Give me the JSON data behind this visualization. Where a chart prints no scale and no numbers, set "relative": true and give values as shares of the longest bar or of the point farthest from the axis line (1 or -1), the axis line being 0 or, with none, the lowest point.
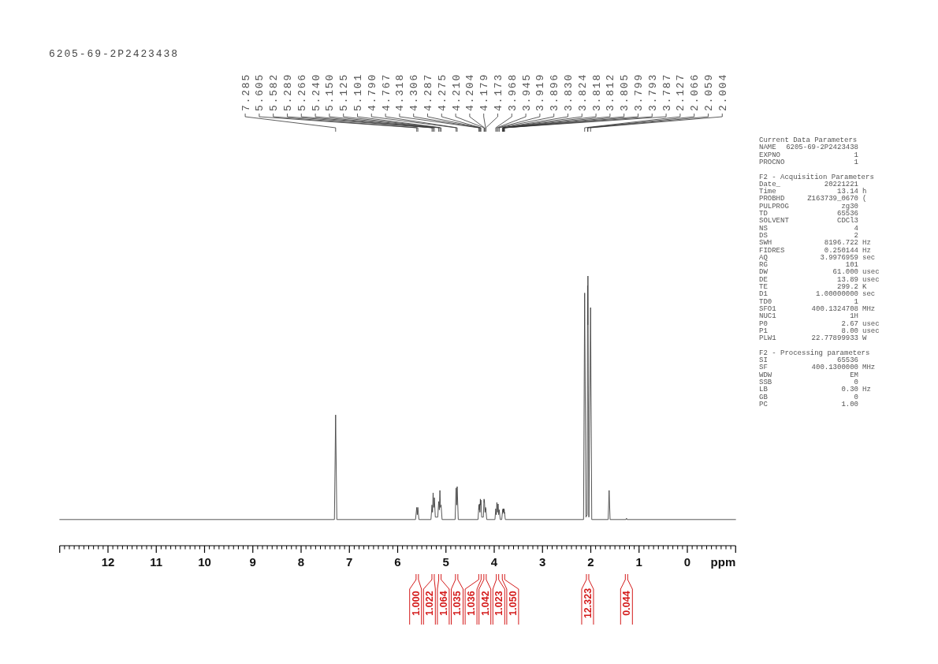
{
  "chart_data": {
    "type": "line",
    "title": "6205-69-2P2423438",
    "xlabel": "ppm",
    "relative": true,
    "color": "#444444",
    "xlim": [
      13,
      -1
    ],
    "xticks": [
      {
        "value": 13,
        "label": null
      },
      {
        "value": 12.9,
        "label": null
      },
      {
        "value": 12.8,
        "label": null
      },
      {
        "value": 12.7,
        "label": null
      },
      {
        "value": 12.6,
        "label": null
      },
      {
        "value": 12.5,
        "label": null
      },
      {
        "value": 12.4,
        "label": null
      },
      {
        "value": 12.3,
        "label": null
      },
      {
        "value": 12.2,
        "label": null
      },
      {
        "value": 12.1,
        "label": null
      },
      12,
      {
        "value": 11.9,
        "label": null
      },
      {
        "value": 11.8,
        "label": null
      },
      {
        "value": 11.7,
        "label": null
      },
      {
        "value": 11.6,
        "label": null
      },
      {
        "value": 11.5,
        "label": null
      },
      {
        "value": 11.4,
        "label": null
      },
      {
        "value": 11.3,
        "label": null
      },
      {
        "value": 11.2,
        "label": null
      },
      {
        "value": 11.1,
        "label": null
      },
      11,
      {
        "value": 10.9,
        "label": null
      },
      {
        "value": 10.8,
        "label": null
      },
      {
        "value": 10.7,
        "label": null
      },
      {
        "value": 10.6,
        "label": null
      },
      {
        "value": 10.5,
        "label": null
      },
      {
        "value": 10.4,
        "label": null
      },
      {
        "value": 10.3,
        "label": null
      },
      {
        "value": 10.2,
        "label": null
      },
      {
        "value": 10.1,
        "label": null
      },
      10,
      {
        "value": 9.9,
        "label": null
      },
      {
        "value": 9.8,
        "label": null
      },
      {
        "value": 9.7,
        "label": null
      },
      {
        "value": 9.6,
        "label": null
      },
      {
        "value": 9.5,
        "label": null
      },
      {
        "value": 9.4,
        "label": null
      },
      {
        "value": 9.3,
        "label": null
      },
      {
        "value": 9.2,
        "label": null
      },
      {
        "value": 9.1,
        "label": null
      },
      9,
      {
        "value": 8.9,
        "label": null
      },
      {
        "value": 8.8,
        "label": null
      },
      {
        "value": 8.7,
        "label": null
      },
      {
        "value": 8.6,
        "label": null
      },
      {
        "value": 8.5,
        "label": null
      },
      {
        "value": 8.4,
        "label": null
      },
      {
        "value": 8.3,
        "label": null
      },
      {
        "value": 8.2,
        "label": null
      },
      {
        "value": 8.1,
        "label": null
      },
      8,
      {
        "value": 7.9,
        "label": null
      },
      {
        "value": 7.8,
        "label": null
      },
      {
        "value": 7.7,
        "label": null
      },
      {
        "value": 7.6,
        "label": null
      },
      {
        "value": 7.5,
        "label": null
      },
      {
        "value": 7.4,
        "label": null
      },
      {
        "value": 7.3,
        "label": null
      },
      {
        "value": 7.2,
        "label": null
      },
      {
        "value": 7.1,
        "label": null
      },
      7,
      {
        "value": 6.9,
        "label": null
      },
      {
        "value": 6.8,
        "label": null
      },
      {
        "value": 6.7,
        "label": null
      },
      {
        "value": 6.6,
        "label": null
      },
      {
        "value": 6.5,
        "label": null
      },
      {
        "value": 6.4,
        "label": null
      },
      {
        "value": 6.3,
        "label": null
      },
      {
        "value": 6.2,
        "label": null
      },
      {
        "value": 6.1,
        "label": null
      },
      6,
      {
        "value": 5.9,
        "label": null
      },
      {
        "value": 5.8,
        "label": null
      },
      {
        "value": 5.7,
        "label": null
      },
      {
        "value": 5.6,
        "label": null
      },
      {
        "value": 5.5,
        "label": null
      },
      {
        "value": 5.4,
        "label": null
      },
      {
        "value": 5.3,
        "label": null
      },
      {
        "value": 5.2,
        "label": null
      },
      {
        "value": 5.1,
        "label": null
      },
      5,
      {
        "value": 4.9,
        "label": null
      },
      {
        "value": 4.8,
        "label": null
      },
      {
        "value": 4.7,
        "label": null
      },
      {
        "value": 4.6,
        "label": null
      },
      {
        "value": 4.5,
        "label": null
      },
      {
        "value": 4.4,
        "label": null
      },
      {
        "value": 4.3,
        "label": null
      },
      {
        "value": 4.2,
        "label": null
      },
      {
        "value": 4.1,
        "label": null
      },
      4,
      {
        "value": 3.9,
        "label": null
      },
      {
        "value": 3.8,
        "label": null
      },
      {
        "value": 3.7,
        "label": null
      },
      {
        "value": 3.6,
        "label": null
      },
      {
        "value": 3.5,
        "label": null
      },
      {
        "value": 3.4,
        "label": null
      },
      {
        "value": 3.3,
        "label": null
      },
      {
        "value": 3.2,
        "label": null
      },
      {
        "value": 3.1,
        "label": null
      },
      3,
      {
        "value": 2.9,
        "label": null
      },
      {
        "value": 2.8,
        "label": null
      },
      {
        "value": 2.7,
        "label": null
      },
      {
        "value": 2.6,
        "label": null
      },
      {
        "value": 2.5,
        "label": null
      },
      {
        "value": 2.4,
        "label": null
      },
      {
        "value": 2.3,
        "label": null
      },
      {
        "value": 2.2,
        "label": null
      },
      {
        "value": 2.1,
        "label": null
      },
      2,
      {
        "value": 1.9,
        "label": null
      },
      {
        "value": 1.8,
        "label": null
      },
      {
        "value": 1.7,
        "label": null
      },
      {
        "value": 1.6,
        "label": null
      },
      {
        "value": 1.5,
        "label": null
      },
      {
        "value": 1.4,
        "label": null
      },
      {
        "value": 1.3,
        "label": null
      },
      {
        "value": 1.2,
        "label": null
      },
      {
        "value": 1.1,
        "label": null
      },
      1,
      {
        "value": 0.9,
        "label": null
      },
      {
        "value": 0.8,
        "label": null
      },
      {
        "value": 0.7,
        "label": null
      },
      {
        "value": 0.6,
        "label": null
      },
      {
        "value": 0.5,
        "label": null
      },
      {
        "value": 0.4,
        "label": null
      },
      {
        "value": 0.3,
        "label": null
      },
      {
        "value": 0.2,
        "label": null
      },
      {
        "value": 0.1,
        "label": null
      },
      0,
      {
        "value": -0.1,
        "label": null
      },
      {
        "value": -0.2,
        "label": null
      },
      {
        "value": -0.3,
        "label": null
      },
      {
        "value": -0.4,
        "label": null
      },
      {
        "value": -0.5,
        "label": null
      },
      {
        "value": -0.6,
        "label": null
      },
      {
        "value": -0.7,
        "label": null
      },
      {
        "value": -0.8,
        "label": null
      },
      {
        "value": -0.9,
        "label": null
      },
      {
        "value": -1,
        "label": null
      }
    ],
    "x": [
      13,
      7.31,
      7.285,
      7.26,
      5.63,
      5.605,
      5.594,
      5.582,
      5.56,
      5.31,
      5.289,
      5.278,
      5.266,
      5.253,
      5.24,
      5.22,
      5.17,
      5.15,
      5.137,
      5.125,
      5.113,
      5.101,
      5.08,
      4.81,
      4.79,
      4.778,
      4.767,
      4.745,
      4.335,
      4.318,
      4.312,
      4.306,
      4.296,
      4.287,
      4.281,
      4.275,
      4.26,
      4.225,
      4.21,
      4.207,
      4.204,
      4.19,
      4.179,
      4.176,
      4.173,
      4.155,
      3.985,
      3.968,
      3.956,
      3.945,
      3.932,
      3.919,
      3.908,
      3.896,
      3.875,
      3.845,
      3.83,
      3.827,
      3.824,
      3.821,
      3.818,
      3.815,
      3.812,
      3.808,
      3.805,
      3.802,
      3.799,
      3.796,
      3.793,
      3.79,
      3.787,
      3.77,
      2.15,
      2.127,
      2.1,
      2.075,
      2.066,
      2.0625,
      2.059,
      2.04,
      2.004,
      1.98,
      1.64,
      1.62,
      1.6,
      1.27,
      1.26,
      1.25,
      -1
    ],
    "values": [
      0.097,
      0.097,
      0.485,
      0.097,
      0.097,
      0.142,
      0.115,
      0.142,
      0.097,
      0.097,
      0.151,
      0.124,
      0.196,
      0.142,
      0.178,
      0.106,
      0.106,
      0.164,
      0.133,
      0.205,
      0.142,
      0.151,
      0.097,
      0.097,
      0.214,
      0.151,
      0.219,
      0.097,
      0.097,
      0.151,
      0.133,
      0.155,
      0.124,
      0.173,
      0.151,
      0.169,
      0.106,
      0.106,
      0.173,
      0.16,
      0.169,
      0.124,
      0.142,
      0.133,
      0.137,
      0.097,
      0.097,
      0.137,
      0.115,
      0.16,
      0.124,
      0.155,
      0.115,
      0.133,
      0.097,
      0.097,
      0.124,
      0.119,
      0.133,
      0.124,
      0.137,
      0.128,
      0.133,
      0.124,
      0.137,
      0.128,
      0.137,
      0.124,
      0.133,
      0.119,
      0.124,
      0.097,
      0.097,
      0.937,
      0.106,
      0.115,
      0.964,
      0.819,
      1,
      0.106,
      0.883,
      0.097,
      0.097,
      0.205,
      0.097,
      0.097,
      0.102,
      0.097,
      0.097
    ],
    "annotations": [
      {
        "text": "7.285",
        "x": 7.285
      },
      {
        "text": "5.605",
        "x": 5.605
      },
      {
        "text": "5.582",
        "x": 5.582
      },
      {
        "text": "5.289",
        "x": 5.289
      },
      {
        "text": "5.266",
        "x": 5.266
      },
      {
        "text": "5.240",
        "x": 5.24
      },
      {
        "text": "5.150",
        "x": 5.15
      },
      {
        "text": "5.125",
        "x": 5.125
      },
      {
        "text": "5.101",
        "x": 5.101
      },
      {
        "text": "4.790",
        "x": 4.79
      },
      {
        "text": "4.767",
        "x": 4.767
      },
      {
        "text": "4.318",
        "x": 4.318
      },
      {
        "text": "4.306",
        "x": 4.306
      },
      {
        "text": "4.287",
        "x": 4.287
      },
      {
        "text": "4.275",
        "x": 4.275
      },
      {
        "text": "4.210",
        "x": 4.21
      },
      {
        "text": "4.204",
        "x": 4.204
      },
      {
        "text": "4.179",
        "x": 4.179
      },
      {
        "text": "4.173",
        "x": 4.173
      },
      {
        "text": "3.968",
        "x": 3.968
      },
      {
        "text": "3.945",
        "x": 3.945
      },
      {
        "text": "3.919",
        "x": 3.919
      },
      {
        "text": "3.896",
        "x": 3.896
      },
      {
        "text": "3.830",
        "x": 3.83
      },
      {
        "text": "3.824",
        "x": 3.824
      },
      {
        "text": "3.818",
        "x": 3.818
      },
      {
        "text": "3.812",
        "x": 3.812
      },
      {
        "text": "3.805",
        "x": 3.805
      },
      {
        "text": "3.799",
        "x": 3.799
      },
      {
        "text": "3.793",
        "x": 3.793
      },
      {
        "text": "3.787",
        "x": 3.787
      },
      {
        "text": "2.127",
        "x": 2.127
      },
      {
        "text": "2.066",
        "x": 2.066
      },
      {
        "text": "2.059",
        "x": 2.059
      },
      {
        "text": "2.004",
        "x": 2.004
      },
      "Current Data Parameters\nNAME\t6205-69-2P2423438\nEXPNO\t1\nPROCNO\t1",
      "F2 - Acquisition Parameters\nDate_\t20221221\nTime\t13.14\th\nPROBHD\tZ163739_0670\t(\nPULPROG\tzg30\nTD\t65536\nSOLVENT\tCDCl3\nNS\t4\nDS\t2\nSWH\t8196.722\tHz\nFIDRES\t0.250144\tHz\nAQ\t3.9976959\tsec\nRG\t101\nDW\t61.000\tusec\nDE\t13.89\tusec\nTE\t299.2\tK\nD1\t1.00000000\tsec\nTD0\t1\nSFO1\t400.1324708\tMHz\nNUC1\t1H\nP0\t2.67\tusec\nP1\t8.00\tusec\nPLW1\t22.77899933\tW",
      "F2 - Processing parameters\nSI\t65536\nSF\t400.1300000\tMHz\nWDW\tEM\nSSB\t0\nLB\t0.30\tHz\nGB\t0\nPC\t1.00",
      {
        "text": "1.000",
        "x": 5.594
      },
      {
        "text": "1.022",
        "x": 5.266
      },
      {
        "text": "1.064",
        "x": 5.125
      },
      {
        "text": "1.035",
        "x": 4.778
      },
      {
        "text": "1.036",
        "x": 4.296
      },
      {
        "text": "1.042",
        "x": 4.19
      },
      {
        "text": "1.023",
        "x": 3.932
      },
      {
        "text": "1.050",
        "x": 3.808
      },
      {
        "text": "12.323",
        "x": 2.066
      },
      {
        "text": "0.044",
        "x": 1.26
      }
    ]
  }
}
